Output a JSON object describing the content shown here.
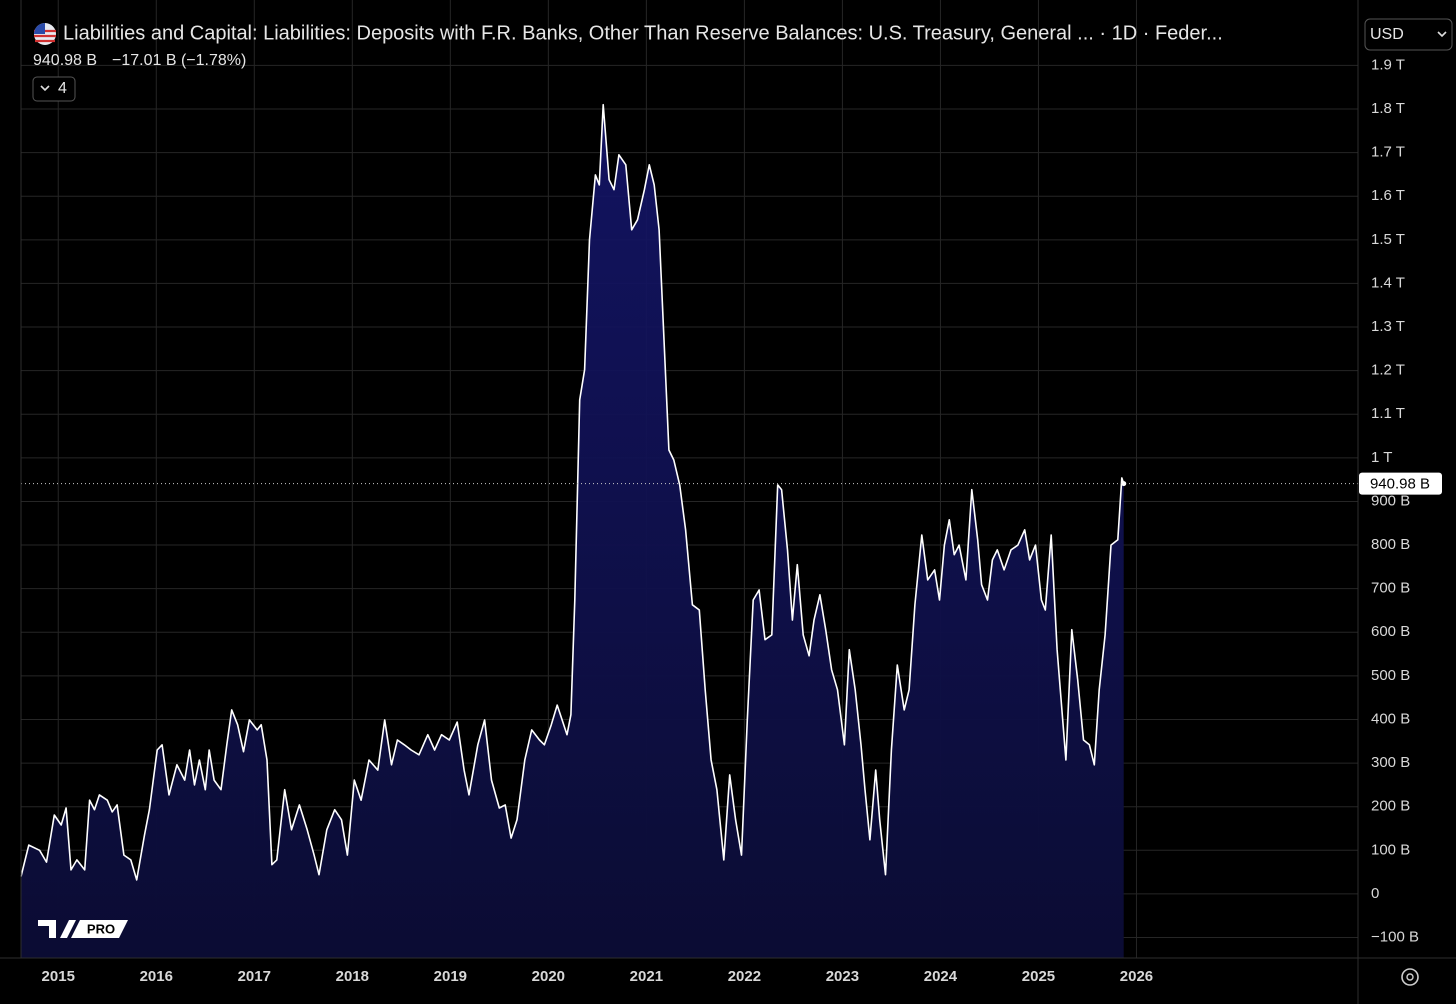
{
  "chart_data": {
    "type": "area",
    "title": "Liabilities and Capital: Liabilities: Deposits with F.R. Banks, Other Than Reserve Balances: U.S. Treasury, General ... · 1D · Feder...",
    "last_label": "940.98 B",
    "change": "−17.01 B (−1.78%)",
    "indicator_count": "4",
    "currency": "USD",
    "logo": "PRO",
    "line_color": "#ffffff",
    "fill_color": "#0f1040",
    "grid": true,
    "xlim": [
      2014.62,
      2028.26
    ],
    "xticks": [
      2015,
      2016,
      2017,
      2018,
      2019,
      2020,
      2021,
      2022,
      2023,
      2024,
      2025,
      2026
    ],
    "ylim": [
      -147,
      2050
    ],
    "yticks": [
      {
        "value": 1900,
        "label": "1.9 T"
      },
      {
        "value": 1800,
        "label": "1.8 T"
      },
      {
        "value": 1700,
        "label": "1.7 T"
      },
      {
        "value": 1600,
        "label": "1.6 T"
      },
      {
        "value": 1500,
        "label": "1.5 T"
      },
      {
        "value": 1400,
        "label": "1.4 T"
      },
      {
        "value": 1300,
        "label": "1.3 T"
      },
      {
        "value": 1200,
        "label": "1.2 T"
      },
      {
        "value": 1100,
        "label": "1.1 T"
      },
      {
        "value": 1000,
        "label": "1 T"
      },
      {
        "value": 900,
        "label": "900 B"
      },
      {
        "value": 800,
        "label": "800 B"
      },
      {
        "value": 700,
        "label": "700 B"
      },
      {
        "value": 600,
        "label": "600 B"
      },
      {
        "value": 500,
        "label": "500 B"
      },
      {
        "value": 400,
        "label": "400 B"
      },
      {
        "value": 300,
        "label": "300 B"
      },
      {
        "value": 200,
        "label": "200 B"
      },
      {
        "value": 100,
        "label": "100 B"
      },
      0,
      {
        "value": -100,
        "label": "−100 B"
      }
    ],
    "x": [
      2014.62,
      2014.7,
      2014.81,
      2014.88,
      2014.96,
      2015.03,
      2015.08,
      2015.13,
      2015.19,
      2015.27,
      2015.32,
      2015.37,
      2015.42,
      2015.5,
      2015.55,
      2015.6,
      2015.67,
      2015.74,
      2015.8,
      2015.88,
      2015.93,
      2016.01,
      2016.06,
      2016.13,
      2016.21,
      2016.29,
      2016.34,
      2016.39,
      2016.44,
      2016.5,
      2016.54,
      2016.59,
      2016.66,
      2016.72,
      2016.77,
      2016.83,
      2016.89,
      2016.95,
      2017.03,
      2017.07,
      2017.13,
      2017.18,
      2017.23,
      2017.31,
      2017.38,
      2017.46,
      2017.54,
      2017.61,
      2017.66,
      2017.74,
      2017.82,
      2017.89,
      2017.95,
      2018.02,
      2018.09,
      2018.17,
      2018.26,
      2018.33,
      2018.4,
      2018.46,
      2018.53,
      2018.6,
      2018.68,
      2018.77,
      2018.84,
      2018.91,
      2018.99,
      2019.07,
      2019.14,
      2019.19,
      2019.28,
      2019.35,
      2019.42,
      2019.5,
      2019.56,
      2019.62,
      2019.68,
      2019.76,
      2019.83,
      2019.91,
      2019.96,
      2020.03,
      2020.09,
      2020.14,
      2020.19,
      2020.23,
      2020.27,
      2020.32,
      2020.37,
      2020.42,
      2020.48,
      2020.52,
      2020.56,
      2020.62,
      2020.67,
      2020.72,
      2020.79,
      2020.85,
      2020.91,
      2020.98,
      2021.03,
      2021.08,
      2021.13,
      2021.18,
      2021.23,
      2021.28,
      2021.34,
      2021.4,
      2021.47,
      2021.54,
      2021.6,
      2021.66,
      2021.72,
      2021.79,
      2021.85,
      2021.91,
      2021.97,
      2022.03,
      2022.09,
      2022.15,
      2022.21,
      2022.28,
      2022.34,
      2022.38,
      2022.44,
      2022.49,
      2022.54,
      2022.6,
      2022.66,
      2022.71,
      2022.77,
      2022.83,
      2022.89,
      2022.95,
      2023.02,
      2023.07,
      2023.13,
      2023.19,
      2023.23,
      2023.28,
      2023.34,
      2023.38,
      2023.44,
      2023.5,
      2023.56,
      2023.63,
      2023.68,
      2023.74,
      2023.81,
      2023.87,
      2023.94,
      2023.99,
      2024.04,
      2024.09,
      2024.14,
      2024.19,
      2024.26,
      2024.32,
      2024.38,
      2024.42,
      2024.48,
      2024.53,
      2024.58,
      2024.65,
      2024.72,
      2024.79,
      2024.86,
      2024.91,
      2024.97,
      2025.03,
      2025.07,
      2025.13,
      2025.19,
      2025.28,
      2025.34,
      2025.4,
      2025.46,
      2025.52,
      2025.57,
      2025.62,
      2025.68,
      2025.74,
      2025.81,
      2025.85,
      2025.87
    ],
    "values": [
      40,
      112,
      100,
      73,
      181,
      158,
      197,
      55,
      78,
      55,
      215,
      193,
      227,
      215,
      188,
      204,
      89,
      78,
      32,
      135,
      193,
      330,
      342,
      227,
      296,
      261,
      330,
      250,
      307,
      239,
      330,
      261,
      239,
      342,
      422,
      388,
      326,
      399,
      376,
      388,
      307,
      67,
      78,
      239,
      147,
      204,
      147,
      89,
      44,
      147,
      193,
      170,
      89,
      261,
      215,
      307,
      284,
      399,
      296,
      353,
      342,
      330,
      319,
      365,
      330,
      365,
      353,
      394,
      284,
      227,
      342,
      399,
      261,
      197,
      204,
      128,
      170,
      307,
      376,
      353,
      342,
      388,
      433,
      399,
      365,
      411,
      674,
      1133,
      1202,
      1500,
      1649,
      1626,
      1810,
      1638,
      1615,
      1695,
      1672,
      1523,
      1546,
      1615,
      1672,
      1626,
      1523,
      1271,
      1018,
      995,
      938,
      835,
      663,
      651,
      468,
      307,
      239,
      78,
      273,
      170,
      89,
      399,
      674,
      697,
      583,
      594,
      938,
      927,
      789,
      628,
      755,
      594,
      546,
      628,
      686,
      606,
      514,
      468,
      342,
      560,
      468,
      342,
      239,
      124,
      284,
      170,
      44,
      330,
      525,
      422,
      468,
      663,
      823,
      720,
      743,
      674,
      800,
      858,
      778,
      800,
      720,
      927,
      812,
      709,
      674,
      766,
      789,
      743,
      789,
      800,
      835,
      766,
      800,
      674,
      651,
      823,
      560,
      307,
      606,
      491,
      353,
      342,
      296,
      468,
      594,
      800,
      812,
      954,
      940.98
    ]
  }
}
